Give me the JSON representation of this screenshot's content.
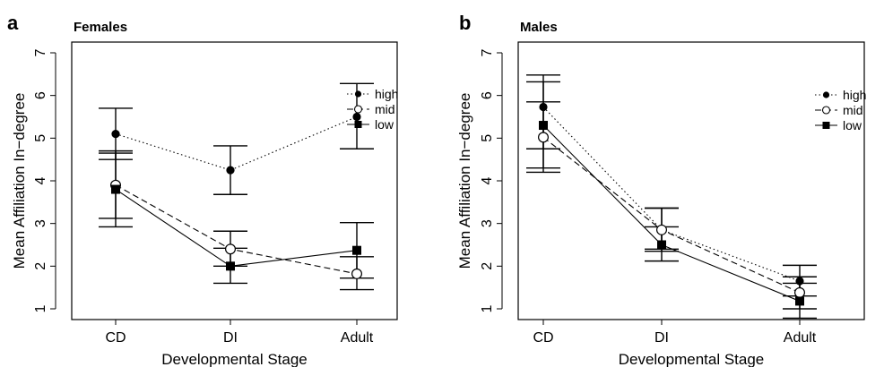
{
  "chart_data": [
    {
      "type": "line",
      "panel_label": "a",
      "title": "Females",
      "xlabel": "Developmental Stage",
      "ylabel": "Mean Affiliation In−degree",
      "categories": [
        "CD",
        "DI",
        "Adult"
      ],
      "yticks": [
        "1",
        "2",
        "3",
        "4",
        "5",
        "6",
        "7"
      ],
      "ylim": [
        1,
        7
      ],
      "grid": false,
      "legend_position": "top-right",
      "series": [
        {
          "name": "high",
          "style": "dotted",
          "marker": "filled-circle",
          "values": [
            5.1,
            4.25,
            5.5
          ],
          "ci_low": [
            4.5,
            3.68,
            4.75
          ],
          "ci_high": [
            5.7,
            4.82,
            6.28
          ]
        },
        {
          "name": "mid",
          "style": "dashed",
          "marker": "open-circle",
          "values": [
            3.9,
            2.4,
            1.82
          ],
          "ci_low": [
            3.12,
            2.0,
            1.45
          ],
          "ci_high": [
            4.7,
            2.82,
            2.22
          ]
        },
        {
          "name": "low",
          "style": "solid",
          "marker": "filled-square",
          "values": [
            3.8,
            2.0,
            2.37
          ],
          "ci_low": [
            2.92,
            1.6,
            1.72
          ],
          "ci_high": [
            4.65,
            2.42,
            3.02
          ]
        }
      ]
    },
    {
      "type": "line",
      "panel_label": "b",
      "title": "Males",
      "xlabel": "Developmental Stage",
      "ylabel": "Mean Affiliation In−degree",
      "categories": [
        "CD",
        "DI",
        "Adult"
      ],
      "yticks": [
        "1",
        "2",
        "3",
        "4",
        "5",
        "6",
        "7"
      ],
      "ylim": [
        1,
        7
      ],
      "grid": false,
      "legend_position": "top-right",
      "series": [
        {
          "name": "high",
          "style": "dotted",
          "marker": "filled-circle",
          "values": [
            5.73,
            2.85,
            1.65
          ],
          "ci_low": [
            4.75,
            2.4,
            1.3
          ],
          "ci_high": [
            6.48,
            3.36,
            2.02
          ]
        },
        {
          "name": "mid",
          "style": "dashed",
          "marker": "open-circle",
          "values": [
            5.02,
            2.85,
            1.38
          ],
          "ci_low": [
            4.2,
            2.35,
            1.0
          ],
          "ci_high": [
            5.85,
            3.36,
            1.75
          ]
        },
        {
          "name": "low",
          "style": "solid",
          "marker": "filled-square",
          "values": [
            5.3,
            2.5,
            1.18
          ],
          "ci_low": [
            4.3,
            2.12,
            0.78
          ],
          "ci_high": [
            6.32,
            2.92,
            1.6
          ]
        }
      ]
    }
  ]
}
